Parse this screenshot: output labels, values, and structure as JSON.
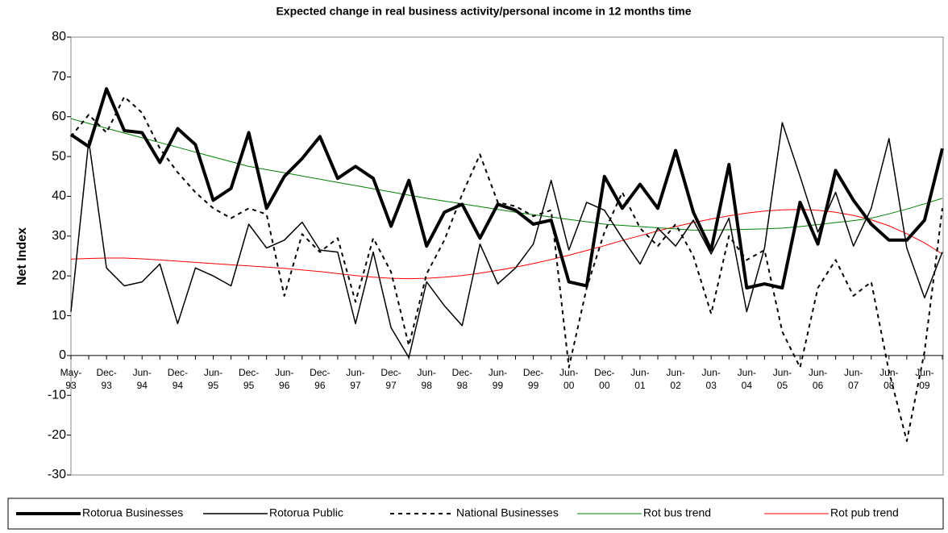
{
  "chart_data": {
    "type": "line",
    "title": "Expected change in real business activity/personal income in 12 months time",
    "y_label": "Net Index",
    "categories": [
      "May-93",
      null,
      "Dec-93",
      null,
      "Jun-94",
      null,
      "Dec-94",
      null,
      "Jun-95",
      null,
      "Dec-95",
      null,
      "Jun-96",
      null,
      "Dec-96",
      null,
      "Jun-97",
      null,
      "Dec-97",
      null,
      "Jun-98",
      null,
      "Dec-98",
      null,
      "Jun-99",
      null,
      "Dec-99",
      null,
      "Jun-00",
      null,
      "Dec-00",
      null,
      "Jun-01",
      null,
      "Jun-02",
      null,
      "Jun-03",
      null,
      "Jun-04",
      null,
      "Jun-05",
      null,
      "Jun-06",
      null,
      "Jun-07",
      null,
      "Jun-08",
      null,
      "Jun-09",
      null
    ],
    "ylim": [
      -30,
      80
    ],
    "yticks": [
      -30,
      -20,
      -10,
      0,
      10,
      20,
      30,
      40,
      50,
      60,
      70,
      80
    ],
    "legend": "bottom",
    "series": [
      {
        "name": "Rotorua Businesses",
        "color": "#000000",
        "dash": false,
        "values": [
          55.5,
          52.5,
          67,
          56.5,
          56,
          48.5,
          57,
          53,
          39,
          42,
          56,
          37,
          45,
          49.5,
          55,
          44.5,
          47.5,
          44.5,
          32.5,
          44,
          27.5,
          36,
          38,
          29.5,
          38,
          36.5,
          33,
          34,
          18.5,
          17.5,
          45,
          37,
          43,
          37,
          51.5,
          36,
          26.5,
          48,
          17,
          18,
          17,
          38.5,
          28,
          46.5,
          39,
          33,
          29,
          29,
          34,
          52
        ]
      },
      {
        "name": "Rotorua Public",
        "color": "#000000",
        "dash": false,
        "values": [
          11,
          54,
          22,
          17.5,
          18.5,
          23,
          8,
          22,
          20,
          17.5,
          33,
          27,
          29,
          33.5,
          26.5,
          26,
          8,
          26,
          7,
          -0.5,
          18.5,
          12.5,
          7.5,
          28,
          18,
          22,
          28,
          44,
          26.5,
          38.5,
          36.5,
          29.5,
          23,
          32,
          27.5,
          34,
          25.5,
          34.5,
          11,
          27,
          58.5,
          45,
          31,
          41,
          27.5,
          37,
          54.5,
          27,
          14.5,
          26
        ]
      },
      {
        "name": "National Businesses",
        "color": "#000000",
        "dash": true,
        "values": [
          55,
          60.5,
          56,
          65,
          61,
          52,
          46,
          41,
          37,
          34.5,
          37,
          35.5,
          15,
          30.5,
          26,
          29.5,
          13.5,
          29.5,
          21,
          2.5,
          20.5,
          29,
          40.5,
          50.5,
          38.5,
          37.5,
          35,
          36.5,
          -3,
          17,
          31,
          41,
          32,
          27.5,
          33,
          25,
          10.5,
          30,
          24,
          26.5,
          6,
          -3,
          17,
          24,
          15,
          18.5,
          -4,
          -21.5,
          1,
          37
        ]
      },
      {
        "name": "Rot bus trend",
        "color": "#008000",
        "dash": false,
        "values": [
          59.5,
          58.3,
          57.1,
          55.9,
          54.7,
          53.5,
          52.3,
          51.1,
          49.9,
          48.7,
          47.5,
          46.7,
          45.9,
          45.1,
          44.3,
          43.5,
          42.7,
          41.9,
          41.1,
          40.3,
          39.5,
          38.8,
          38.1,
          37.4,
          36.7,
          36,
          35.4,
          34.8,
          34.2,
          33.6,
          33,
          32.7,
          32.4,
          32.1,
          31.8,
          31.5,
          31.5,
          31.6,
          31.7,
          31.8,
          32,
          32.4,
          32.9,
          33.4,
          33.9,
          34.5,
          35.6,
          36.8,
          38.1,
          39.5
        ]
      },
      {
        "name": "Rot pub trend",
        "color": "#ff0000",
        "dash": false,
        "values": [
          24.2,
          24.4,
          24.5,
          24.5,
          24.3,
          24,
          23.7,
          23.4,
          23.1,
          22.8,
          22.5,
          22.2,
          21.9,
          21.5,
          21.1,
          20.6,
          20.1,
          19.7,
          19.4,
          19.3,
          19.4,
          19.7,
          20.1,
          20.7,
          21.4,
          22.2,
          23.1,
          24.1,
          25.2,
          26.4,
          27.6,
          28.9,
          30.1,
          31.3,
          32.4,
          33.4,
          34.3,
          35.1,
          35.8,
          36.3,
          36.6,
          36.7,
          36.5,
          36,
          35.2,
          34.1,
          32.6,
          30.6,
          28.3,
          25.5
        ]
      }
    ]
  }
}
